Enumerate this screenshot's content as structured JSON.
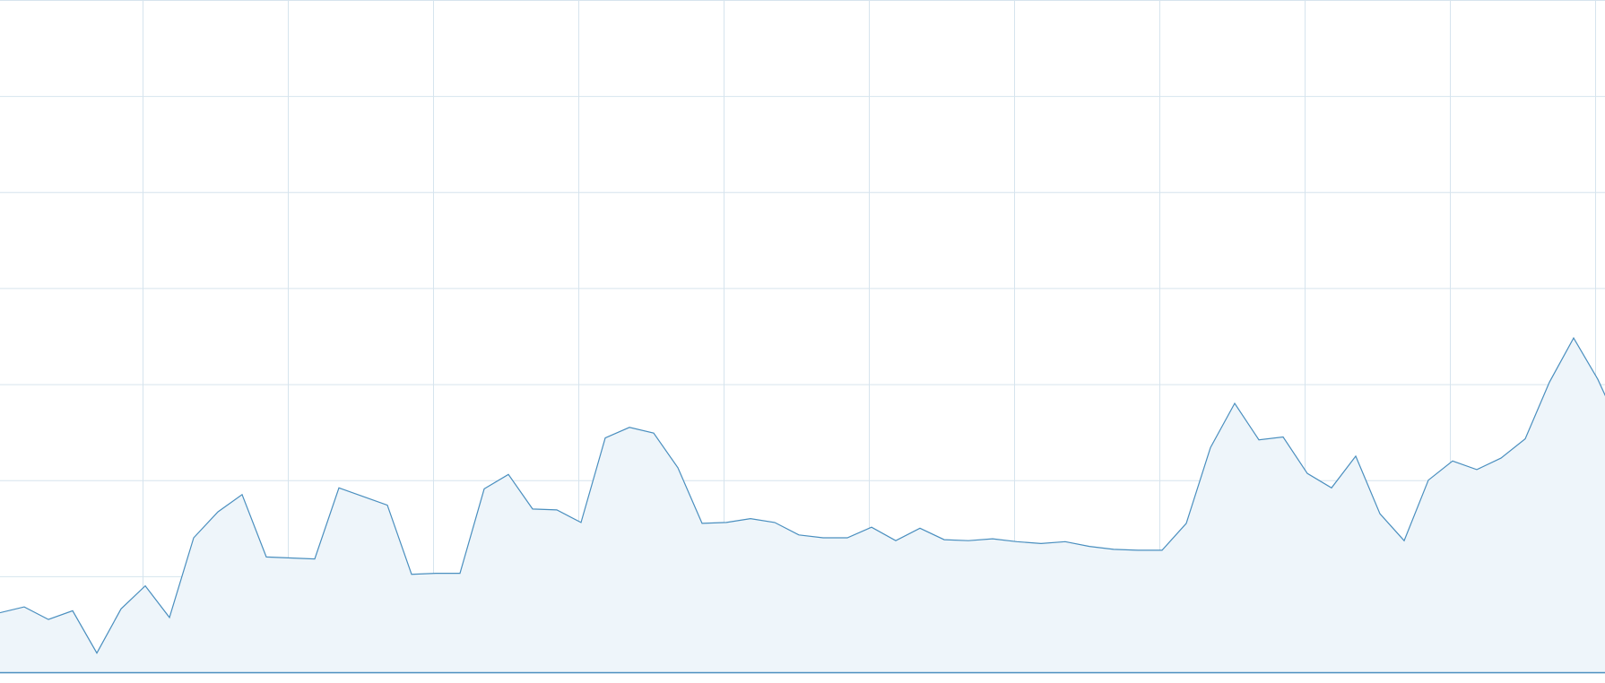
{
  "chart_data": {
    "type": "area",
    "title": "",
    "xlabel": "",
    "ylabel": "",
    "x": [
      0,
      1,
      2,
      3,
      4,
      5,
      6,
      7,
      8,
      9,
      10,
      11,
      12,
      13,
      14,
      15,
      16,
      17,
      18,
      19,
      20,
      21,
      22,
      23,
      24,
      25,
      26,
      27,
      28,
      29,
      30,
      31,
      32,
      33,
      34,
      35,
      36,
      37,
      38,
      39,
      40,
      41,
      42,
      43,
      44,
      45,
      46,
      47,
      48,
      49,
      50,
      51,
      52,
      53,
      54,
      55,
      56,
      57,
      58,
      59,
      60,
      61,
      62,
      63,
      64,
      65,
      66,
      67,
      68
    ],
    "values": [
      62,
      68,
      55,
      64,
      20,
      66,
      90,
      57,
      140,
      167,
      185,
      120,
      119,
      118,
      192,
      183,
      174,
      102,
      103,
      103,
      191,
      206,
      170,
      169,
      156,
      244,
      255,
      249,
      213,
      155,
      156,
      160,
      156,
      143,
      140,
      140,
      151,
      137,
      150,
      138,
      137,
      139,
      136,
      134,
      136,
      131,
      128,
      127,
      127,
      155,
      234,
      280,
      242,
      245,
      207,
      192,
      225,
      165,
      137,
      200,
      220,
      211,
      223,
      243,
      302,
      348,
      305,
      250,
      210
    ],
    "ylim": [
      0,
      700
    ],
    "grid": true,
    "colors": {
      "line": "#4a8fbf",
      "fill": "#eef5fa",
      "grid": "#d6e4ee",
      "axis": "#4a8fbf"
    }
  }
}
